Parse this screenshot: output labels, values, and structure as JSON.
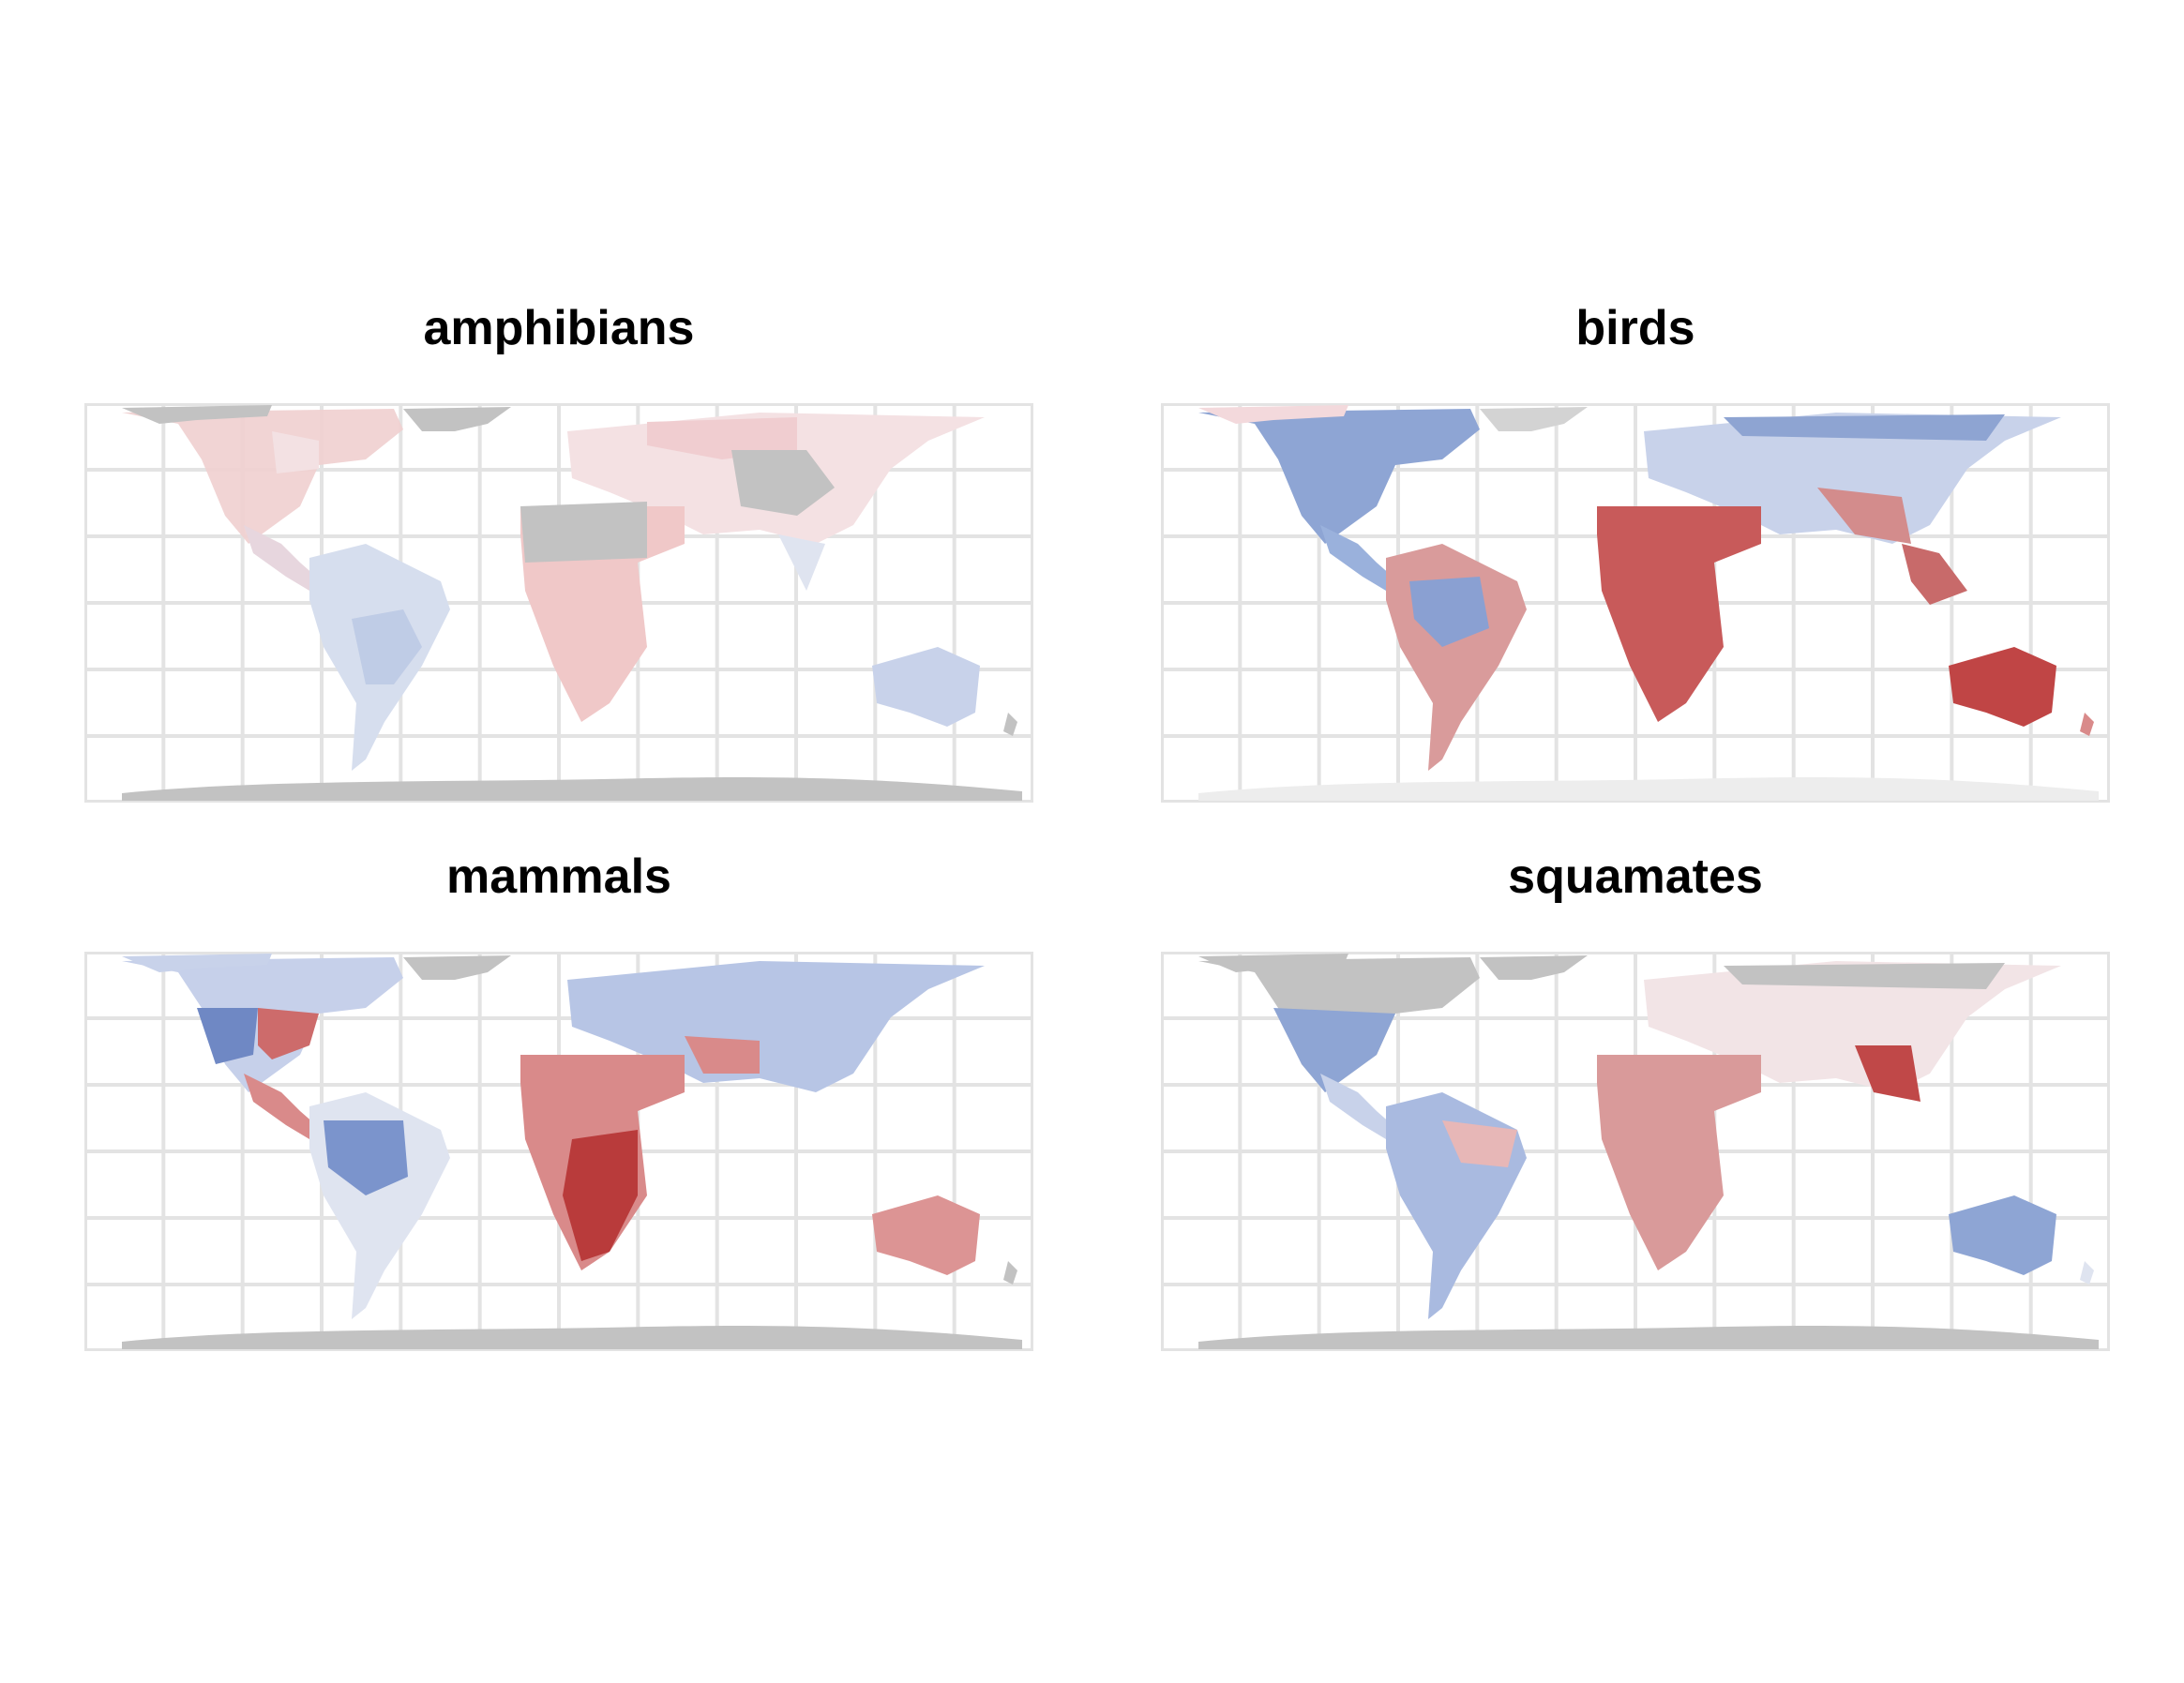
{
  "figure": {
    "panels": [
      {
        "title": "amphibians"
      },
      {
        "title": "birds"
      },
      {
        "title": "mammals"
      },
      {
        "title": "squamates"
      }
    ]
  },
  "colors": {
    "background": "#ffffff",
    "grid": "#e3e3e3",
    "no_data": "#c2c2c2",
    "high_value": "#b3262e",
    "mid_value": "#f2f0f2",
    "low_value": "#3a5fa8"
  }
}
